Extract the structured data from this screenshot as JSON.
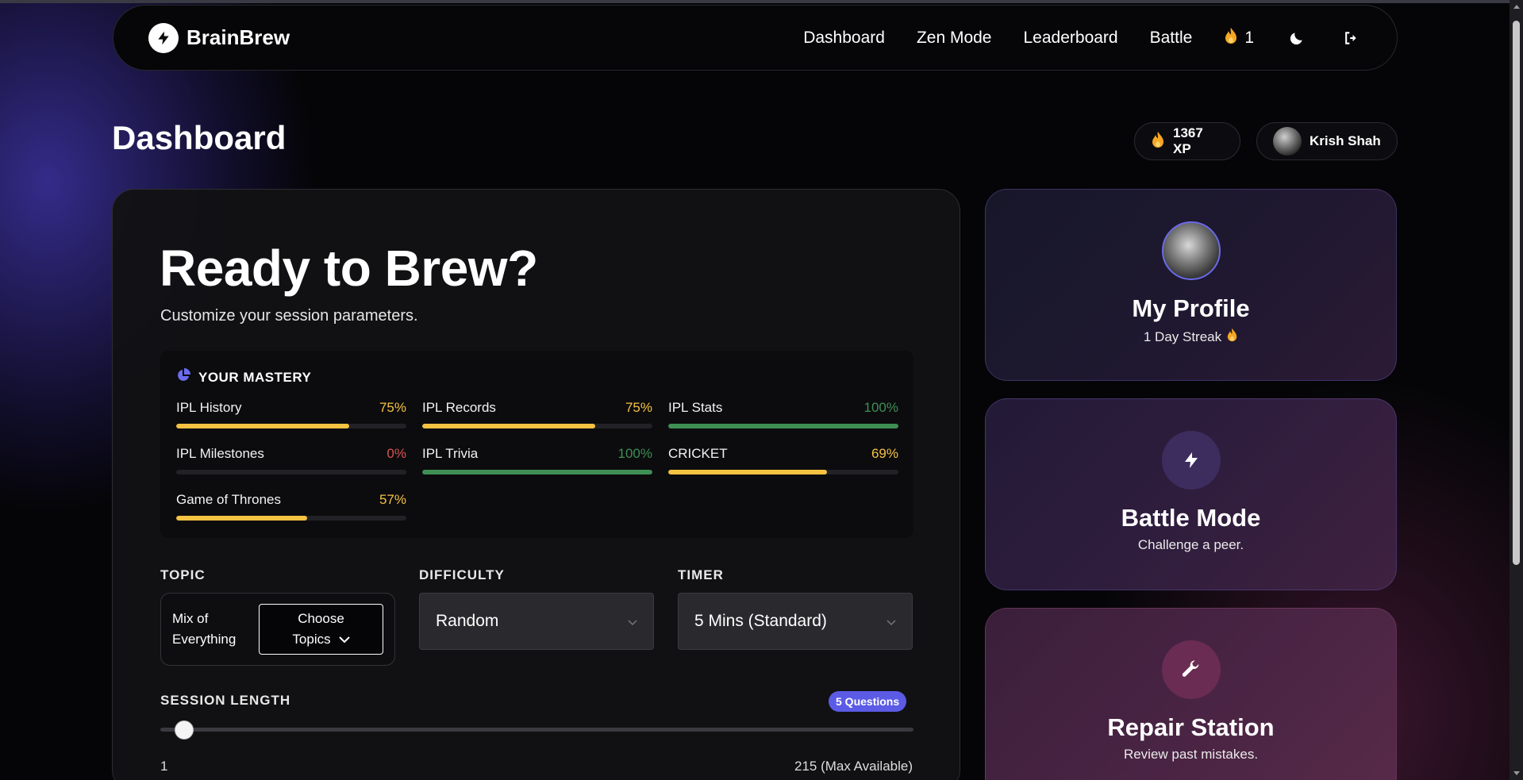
{
  "nav": {
    "brand": "BrainBrew",
    "links": [
      "Dashboard",
      "Zen Mode",
      "Leaderboard",
      "Battle"
    ],
    "streak_count": "1"
  },
  "header": {
    "title": "Dashboard",
    "xp": "1367 XP",
    "user_name": "Krish Shah"
  },
  "hero": {
    "title": "Ready to Brew?",
    "subtitle": "Customize your session parameters."
  },
  "mastery": {
    "heading": "YOUR MASTERY",
    "items": [
      {
        "label": "IPL History",
        "pct": "75%",
        "value": 0.75,
        "color": "#f5c242"
      },
      {
        "label": "IPL Records",
        "pct": "75%",
        "value": 0.75,
        "color": "#f5c242"
      },
      {
        "label": "IPL Stats",
        "pct": "100%",
        "value": 1.0,
        "color": "#3f8f55"
      },
      {
        "label": "IPL Milestones",
        "pct": "0%",
        "value": 0.0,
        "color": "#d9534f"
      },
      {
        "label": "IPL Trivia",
        "pct": "100%",
        "value": 1.0,
        "color": "#3f8f55"
      },
      {
        "label": "CRICKET",
        "pct": "69%",
        "value": 0.69,
        "color": "#f5c242"
      },
      {
        "label": "Game of Thrones",
        "pct": "57%",
        "value": 0.57,
        "color": "#f5c242"
      }
    ]
  },
  "settings": {
    "topic_label": "TOPIC",
    "topic_value": "Mix of Everything",
    "choose_line1": "Choose",
    "choose_line2": "Topics",
    "difficulty_label": "DIFFICULTY",
    "difficulty_value": "Random",
    "timer_label": "TIMER",
    "timer_value": "5 Mins (Standard)",
    "session_label": "SESSION LENGTH",
    "questions_badge": "5 Questions",
    "slider_min": "1",
    "slider_max": "215 (Max Available)"
  },
  "cards": {
    "profile_title": "My Profile",
    "profile_sub": "1 Day Streak",
    "battle_title": "Battle Mode",
    "battle_sub": "Challenge a peer.",
    "repair_title": "Repair Station",
    "repair_sub": "Review past mistakes."
  },
  "colors": {
    "accent": "#5b5be6",
    "flame": "#f5a623",
    "yellow_bar": "#f5c242",
    "green_bar": "#3f8f55"
  },
  "icons": [
    "bolt-icon",
    "flame-icon",
    "moon-icon",
    "logout-icon",
    "pie-chart-icon",
    "chevron-down-icon",
    "wrench-icon"
  ]
}
